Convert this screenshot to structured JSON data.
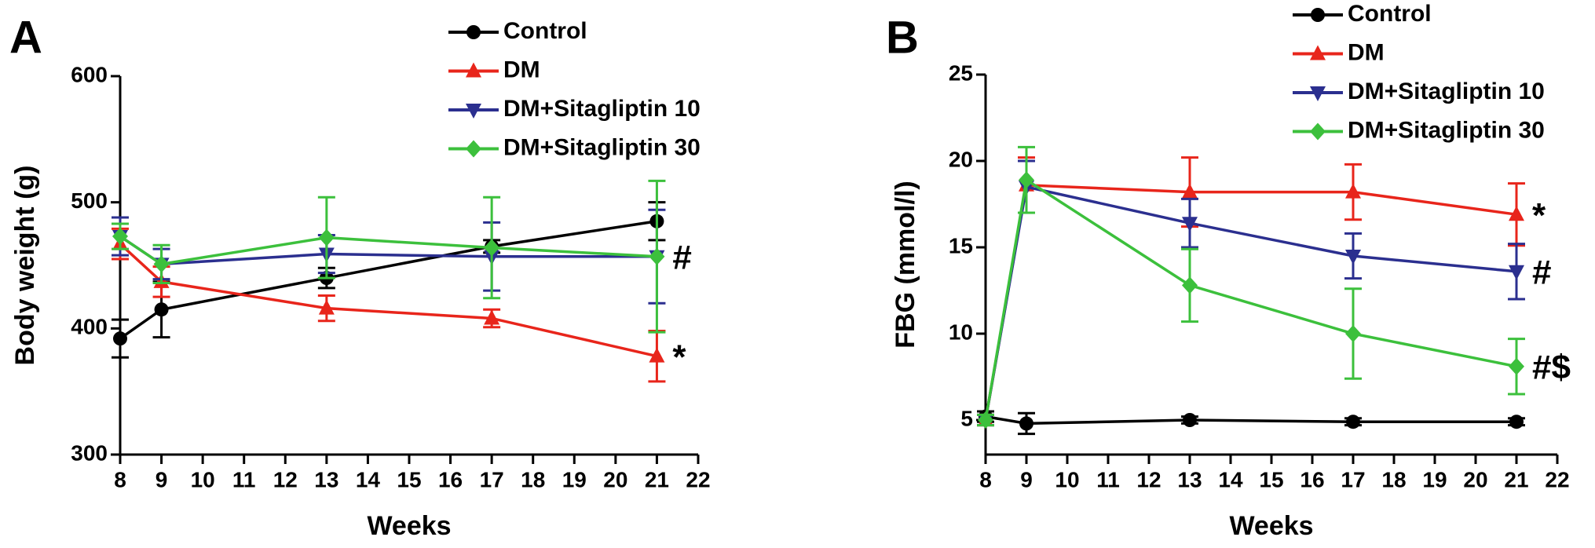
{
  "chart_data": [
    {
      "type": "line",
      "panel": "A",
      "x_label": "Weeks",
      "y_label": "Body weight (g)",
      "xlim": [
        8,
        22
      ],
      "xticks": [
        8,
        9,
        10,
        11,
        12,
        13,
        14,
        15,
        16,
        17,
        18,
        19,
        20,
        21,
        22
      ],
      "ylim": [
        300,
        600
      ],
      "yticks": [
        300,
        400,
        500,
        600
      ],
      "series": [
        {
          "name": "Control",
          "color": "#000000",
          "marker": "circle",
          "x": [
            8,
            9,
            13,
            17,
            21
          ],
          "values": [
            392,
            415,
            440,
            465,
            485
          ],
          "errors": [
            15,
            22,
            8,
            5,
            15
          ]
        },
        {
          "name": "DM",
          "color": "#e8251b",
          "marker": "triangle",
          "x": [
            8,
            9,
            13,
            17,
            21
          ],
          "values": [
            467,
            437,
            416,
            408,
            378
          ],
          "errors": [
            12,
            12,
            10,
            7,
            20
          ],
          "annotation": "*"
        },
        {
          "name": "DM+Sitagliptin 10",
          "color": "#2b2f8f",
          "marker": "triangle-down",
          "x": [
            8,
            9,
            13,
            17,
            21
          ],
          "values": [
            473,
            451,
            459,
            457,
            457
          ],
          "errors": [
            15,
            12,
            15,
            27,
            37
          ]
        },
        {
          "name": "DM+Sitagliptin 30",
          "color": "#3cc03c",
          "marker": "diamond",
          "x": [
            8,
            9,
            13,
            17,
            21
          ],
          "values": [
            473,
            451,
            472,
            464,
            457
          ],
          "errors": [
            10,
            15,
            32,
            40,
            60
          ],
          "annotation": "#"
        }
      ]
    },
    {
      "type": "line",
      "panel": "B",
      "x_label": "Weeks",
      "y_label": "FBG (mmol/l)",
      "xlim": [
        8,
        22
      ],
      "xticks": [
        8,
        9,
        10,
        11,
        12,
        13,
        14,
        15,
        16,
        17,
        18,
        19,
        20,
        21,
        22
      ],
      "ylim": [
        3,
        25
      ],
      "yticks": [
        5,
        10,
        15,
        20,
        25
      ],
      "series": [
        {
          "name": "Control",
          "color": "#000000",
          "marker": "circle",
          "x": [
            8,
            9,
            13,
            17,
            21
          ],
          "values": [
            5.2,
            4.8,
            5.0,
            4.9,
            4.9
          ],
          "errors": [
            0.3,
            0.6,
            0.2,
            0.2,
            0.2
          ]
        },
        {
          "name": "DM",
          "color": "#e8251b",
          "marker": "triangle",
          "x": [
            8,
            9,
            13,
            17,
            21
          ],
          "values": [
            5.0,
            18.6,
            18.2,
            18.2,
            16.9
          ],
          "errors": [
            0.3,
            1.6,
            2.0,
            1.6,
            1.8
          ],
          "annotation": "*"
        },
        {
          "name": "DM+Sitagliptin 10",
          "color": "#2b2f8f",
          "marker": "triangle-down",
          "x": [
            8,
            9,
            13,
            17,
            21
          ],
          "values": [
            5.0,
            18.5,
            16.4,
            14.5,
            13.6
          ],
          "errors": [
            0.3,
            1.5,
            1.4,
            1.3,
            1.6
          ],
          "annotation": "#"
        },
        {
          "name": "DM+Sitagliptin 30",
          "color": "#3cc03c",
          "marker": "diamond",
          "x": [
            8,
            9,
            13,
            17,
            21
          ],
          "values": [
            5.0,
            18.9,
            12.8,
            10.0,
            8.1
          ],
          "errors": [
            0.3,
            1.9,
            2.1,
            2.6,
            1.6
          ],
          "annotation": "#$"
        }
      ]
    }
  ]
}
